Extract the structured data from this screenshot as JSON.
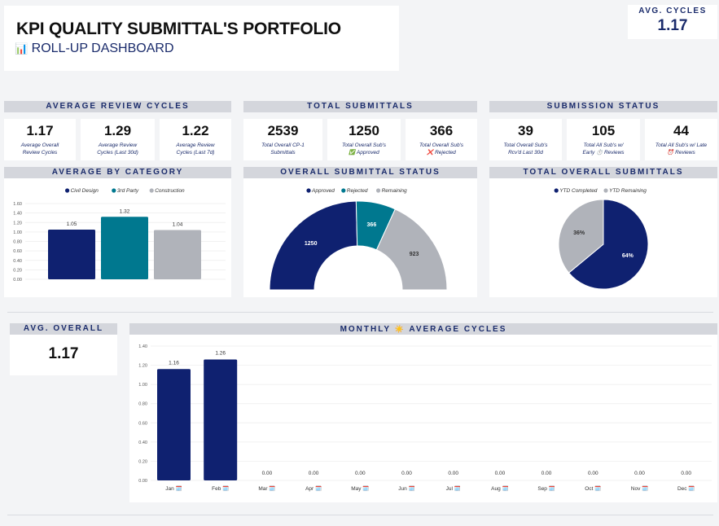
{
  "header": {
    "title": "KPI QUALITY SUBMITTAL'S PORTFOLIO",
    "subtitle_icon": "📊",
    "subtitle": "ROLL-UP DASHBOARD"
  },
  "avg_cycles": {
    "label": "AVG. CYCLES",
    "value": "1.17"
  },
  "sections": {
    "average_review_cycles": "AVERAGE REVIEW CYCLES",
    "total_submittals": "TOTAL SUBMITTALS",
    "submission_status": "SUBMISSION STATUS",
    "average_by_category": "AVERAGE BY CATEGORY",
    "overall_submittal_status": "OVERALL SUBMITTAL STATUS",
    "total_overall_submittals": "TOTAL OVERALL SUBMITTALS",
    "avg_overall": "AVG. OVERALL",
    "monthly_prefix": "MONTHLY",
    "monthly_icon": "☀️",
    "monthly_suffix": "AVERAGE CYCLES"
  },
  "kpis": [
    {
      "value": "1.17",
      "line1": "Average Overall",
      "line2": "Review Cycles"
    },
    {
      "value": "1.29",
      "line1": "Average Review",
      "line2": "Cycles (Last 30d)"
    },
    {
      "value": "1.22",
      "line1": "Average Review",
      "line2": "Cycles (Last 7d)"
    },
    {
      "value": "2539",
      "line1": "Total Overall CP-1",
      "line2": "Submittals"
    },
    {
      "value": "1250",
      "line1": "Total Overall Sub's",
      "line2": "✅ Approved"
    },
    {
      "value": "366",
      "line1": "Total Overall Sub's",
      "line2": "❌ Rejected"
    },
    {
      "value": "39",
      "line1": "Total Overall Sub's",
      "line2": "Rcv'd Last 30d"
    },
    {
      "value": "105",
      "line1": "Total All Sub's w/",
      "line2": "Early ⏱️ Reviews"
    },
    {
      "value": "44",
      "line1": "Total All Sub's w/ Late",
      "line2": "⏰ Reviews"
    }
  ],
  "avg_overall": {
    "value": "1.17"
  },
  "colors": {
    "navy": "#0f2170",
    "teal": "#00788f",
    "gray": "#b0b3ba",
    "header_bg": "#d4d6dc",
    "header_text": "#1a2b6b"
  },
  "chart_data": [
    {
      "type": "bar",
      "title": "AVERAGE BY CATEGORY",
      "legend": [
        "Civil Design",
        "3rd Party",
        "Construction"
      ],
      "categories": [
        "Civil Design",
        "3rd Party",
        "Construction"
      ],
      "values": [
        1.05,
        1.32,
        1.04
      ],
      "value_labels": [
        "1.05",
        "1.32",
        "1.04"
      ],
      "yticks": [
        "1.60",
        "1.40",
        "1.20",
        "1.00",
        "0.80",
        "0.60",
        "0.40",
        "0.20",
        "0.00"
      ],
      "ylim": [
        0,
        1.6
      ]
    },
    {
      "type": "pie",
      "subtype": "half-donut",
      "title": "OVERALL SUBMITTAL STATUS",
      "legend": [
        "Approved",
        "Rejected",
        "Remaining"
      ],
      "values": [
        1250,
        366,
        923
      ],
      "value_labels": [
        "1250",
        "366",
        "923"
      ]
    },
    {
      "type": "pie",
      "title": "TOTAL OVERALL SUBMITTALS",
      "legend": [
        "YTD Completed",
        "YTD Remaining"
      ],
      "values": [
        64,
        36
      ],
      "value_labels": [
        "64%",
        "36%"
      ]
    },
    {
      "type": "bar",
      "title": "MONTHLY AVERAGE CYCLES",
      "categories": [
        "Jan 🗓️",
        "Feb 🗓️",
        "Mar 🗓️",
        "Apr 🗓️",
        "May 🗓️",
        "Jun 🗓️",
        "Jul 🗓️",
        "Aug 🗓️",
        "Sep 🗓️",
        "Oct 🗓️",
        "Nov 🗓️",
        "Dec 🗓️"
      ],
      "values": [
        1.16,
        1.26,
        0,
        0,
        0,
        0,
        0,
        0,
        0,
        0,
        0,
        0
      ],
      "value_labels": [
        "1.16",
        "1.26",
        "0.00",
        "0.00",
        "0.00",
        "0.00",
        "0.00",
        "0.00",
        "0.00",
        "0.00",
        "0.00",
        "0.00"
      ],
      "yticks": [
        "1.40",
        "1.20",
        "1.00",
        "0.80",
        "0.60",
        "0.40",
        "0.20",
        "0.00"
      ],
      "ylim": [
        0,
        1.4
      ]
    }
  ]
}
